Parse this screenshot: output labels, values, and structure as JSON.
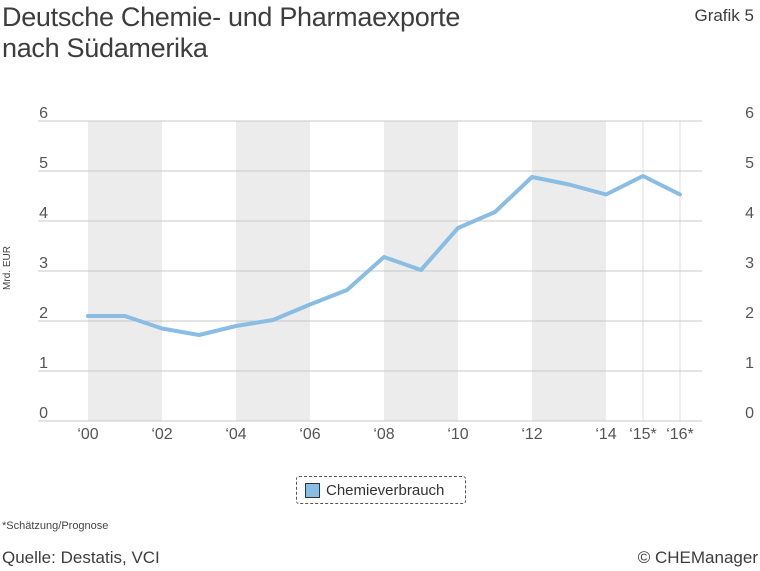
{
  "header": {
    "title_line1": "Deutsche Chemie- und Pharmaexporte",
    "title_line2": "nach Südamerika",
    "grafik_label": "Grafik 5"
  },
  "footer": {
    "footnote": "*Schätzung/Prognose",
    "source": "Quelle: Destatis, VCI",
    "copyright": "© CHEManager"
  },
  "colors": {
    "line": "#89bde4",
    "band": "#ececec",
    "grid": "#c8c8c8"
  },
  "chart_data": {
    "type": "line",
    "title": "Deutsche Chemie- und Pharmaexporte nach Südamerika",
    "ylabel": "Mrd. EUR",
    "xlabel": "",
    "ylim": [
      0,
      6
    ],
    "yticks": [
      "0",
      "1",
      "2",
      "3",
      "4",
      "5",
      "6"
    ],
    "xlim": [
      2000,
      2016
    ],
    "xticks": [
      {
        "year": 2000,
        "label": "'00"
      },
      {
        "year": 2002,
        "label": "'02"
      },
      {
        "year": 2004,
        "label": "'04"
      },
      {
        "year": 2006,
        "label": "'06"
      },
      {
        "year": 2008,
        "label": "'08"
      },
      {
        "year": 2010,
        "label": "'10"
      },
      {
        "year": 2012,
        "label": "'12"
      },
      {
        "year": 2014,
        "label": "'14"
      },
      {
        "year": 2015,
        "label": "'15*"
      },
      {
        "year": 2016,
        "label": "'16*"
      }
    ],
    "shaded_bands": [
      [
        2000,
        2002
      ],
      [
        2004,
        2006
      ],
      [
        2008,
        2010
      ],
      [
        2012,
        2014
      ]
    ],
    "grid": true,
    "legend_position": "bottom-center",
    "series": [
      {
        "name": "Chemieverbrauch",
        "x": [
          2000,
          2001,
          2002,
          2003,
          2004,
          2005,
          2006,
          2007,
          2008,
          2009,
          2010,
          2011,
          2012,
          2013,
          2014,
          2015,
          2016
        ],
        "values": [
          2.1,
          2.1,
          1.85,
          1.72,
          1.9,
          2.02,
          2.33,
          2.62,
          3.28,
          3.02,
          3.86,
          4.18,
          4.88,
          4.73,
          4.53,
          4.9,
          4.53
        ]
      }
    ]
  }
}
